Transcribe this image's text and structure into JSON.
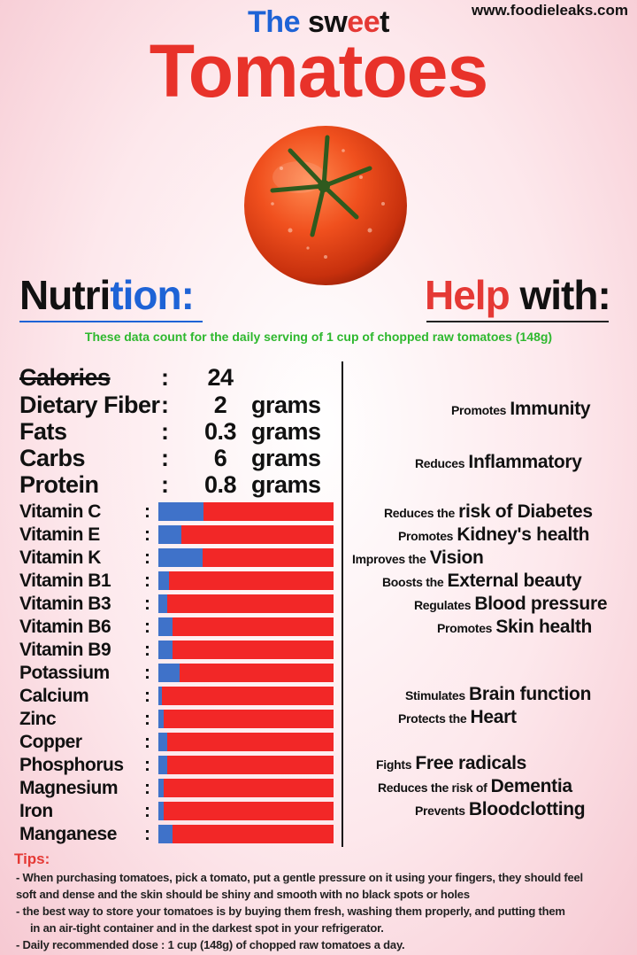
{
  "site": "www.foodieleaks.com",
  "subtitle": {
    "the": "The",
    "sweet_pre": "sw",
    "sweet_mid": "ee",
    "sweet_post": "t"
  },
  "title": "Tomatoes",
  "nutrition_heading": {
    "part1": "Nutri",
    "part2": "tion:"
  },
  "help_heading": {
    "part1": "Help",
    "part2": " with:"
  },
  "serving_note": "These data count for the daily serving of 1 cup of chopped raw tomatoes (148g)",
  "macros": [
    {
      "name": "Calories",
      "value": "24",
      "unit": ""
    },
    {
      "name": "Dietary Fiber",
      "value": "2",
      "unit": "grams"
    },
    {
      "name": "Fats",
      "value": "0.3",
      "unit": "grams"
    },
    {
      "name": "Carbs",
      "value": "6",
      "unit": "grams"
    },
    {
      "name": "Protein",
      "value": "0.8",
      "unit": "grams"
    }
  ],
  "colon": ":",
  "vitamins": [
    {
      "name": "Vitamin C",
      "fraction": 0.26
    },
    {
      "name": "Vitamin E",
      "fraction": 0.13
    },
    {
      "name": "Vitamin K",
      "fraction": 0.25
    },
    {
      "name": "Vitamin B1",
      "fraction": 0.06
    },
    {
      "name": "Vitamin B3",
      "fraction": 0.05
    },
    {
      "name": "Vitamin B6",
      "fraction": 0.08
    },
    {
      "name": "Vitamin B9",
      "fraction": 0.08
    },
    {
      "name": "Potassium",
      "fraction": 0.12
    },
    {
      "name": "Calcium",
      "fraction": 0.02
    },
    {
      "name": "Zinc",
      "fraction": 0.03
    },
    {
      "name": "Copper",
      "fraction": 0.05
    },
    {
      "name": "Phosphorus",
      "fraction": 0.05
    },
    {
      "name": "Magnesium",
      "fraction": 0.03
    },
    {
      "name": "Iron",
      "fraction": 0.03
    },
    {
      "name": "Manganese",
      "fraction": 0.08
    }
  ],
  "bar_colors": {
    "filled": "#3f72c9",
    "remaining": "#f22727"
  },
  "benefits": [
    {
      "small": "Promotes",
      "big": "Immunity"
    },
    {
      "small": "Reduces",
      "big": "Inflammatory"
    },
    {
      "small": "Reduces the",
      "big": "risk of Diabetes"
    },
    {
      "small": "Promotes",
      "big": "Kidney's health"
    },
    {
      "small": "Improves the",
      "big": "Vision"
    },
    {
      "small": "Boosts the",
      "big": "External beauty"
    },
    {
      "small": "Regulates",
      "big": "Blood pressure"
    },
    {
      "small": "Promotes",
      "big": "Skin health"
    },
    {
      "small": "Stimulates",
      "big": "Brain function"
    },
    {
      "small": "Protects the",
      "big": "Heart"
    },
    {
      "small": "Fights",
      "big": "Free radicals"
    },
    {
      "small": "Reduces the risk of",
      "big": "Dementia"
    },
    {
      "small": "Prevents",
      "big": "Bloodclotting"
    }
  ],
  "tips_heading": "Tips:",
  "tips": [
    "- When purchasing tomatoes, pick a tomato, put a gentle pressure on it using your fingers, they should feel",
    "soft and dense and the skin should be shiny and smooth with no black spots or holes",
    "- the best way to store your tomatoes is by buying them fresh, washing them properly, and putting them",
    "in an air-tight container and in the darkest spot in your refrigerator.",
    "- Daily recommended dose : 1 cup (148g) of chopped raw tomatoes a day."
  ]
}
